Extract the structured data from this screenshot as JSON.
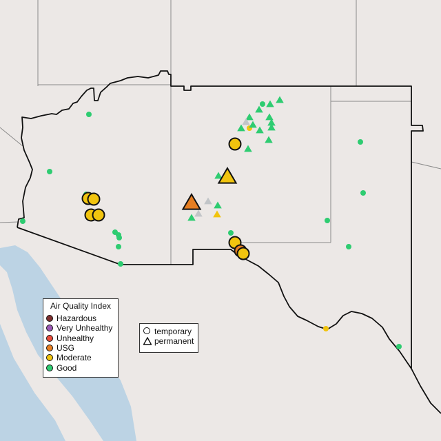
{
  "legend": {
    "title": "Air Quality Index",
    "categories": [
      {
        "key": "hazardous",
        "label": "Hazardous",
        "color": "#7e3030"
      },
      {
        "key": "very_unhealthy",
        "label": "Very Unhealthy",
        "color": "#9b59b6"
      },
      {
        "key": "unhealthy",
        "label": "Unhealthy",
        "color": "#e74c3c"
      },
      {
        "key": "usg",
        "label": "USG",
        "color": "#e67e22"
      },
      {
        "key": "moderate",
        "label": "Moderate",
        "color": "#f1c40f"
      },
      {
        "key": "good",
        "label": "Good",
        "color": "#2ecc71"
      }
    ],
    "no_data_color": "#c2c5c8"
  },
  "type_legend": {
    "temporary": "temporary",
    "permanent": "permanent"
  },
  "colors": {
    "land": "#ece8e6",
    "water": "#bcd3e4",
    "border": "#111111",
    "state_line": "#8a8a8a"
  },
  "sites": [
    {
      "aqi": "moderate",
      "type": "temporary",
      "large": true
    },
    {
      "aqi": "moderate",
      "type": "temporary",
      "large": true
    },
    {
      "aqi": "moderate",
      "type": "temporary",
      "large": true
    },
    {
      "aqi": "moderate",
      "type": "temporary",
      "large": true
    },
    {
      "aqi": "moderate",
      "type": "temporary",
      "large": true
    },
    {
      "aqi": "moderate",
      "type": "temporary",
      "large": true
    },
    {
      "aqi": "usg",
      "type": "temporary",
      "large": true
    },
    {
      "aqi": "moderate",
      "type": "temporary",
      "large": true
    },
    {
      "aqi": "usg",
      "type": "permanent",
      "large": true
    },
    {
      "aqi": "moderate",
      "type": "permanent",
      "large": true
    }
  ]
}
